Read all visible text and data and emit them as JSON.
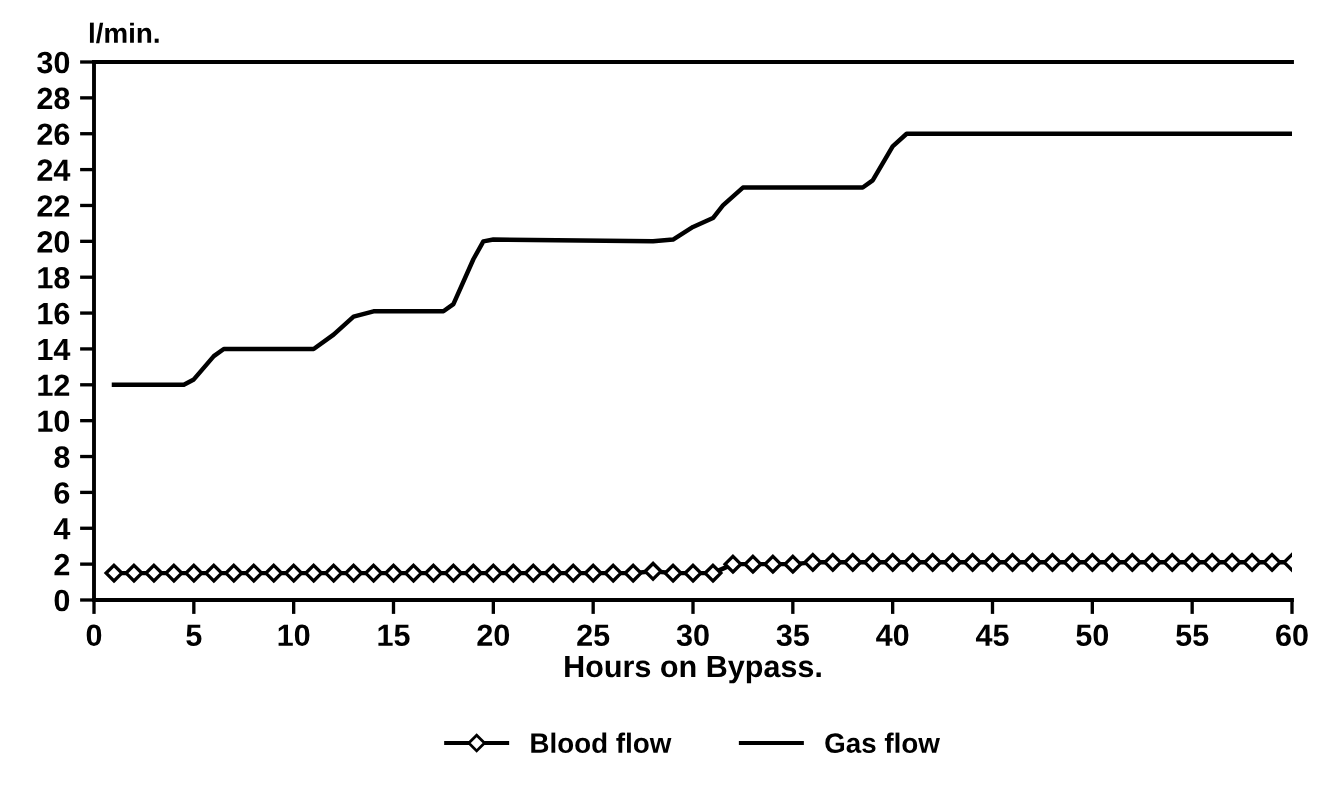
{
  "chart_data": {
    "type": "line",
    "ylabel": "l/min.",
    "xlabel": "Hours on Bypass.",
    "xlim": [
      0,
      60
    ],
    "xticks": [
      0,
      5,
      10,
      15,
      20,
      25,
      30,
      35,
      40,
      45,
      50,
      55,
      60
    ],
    "ylim": [
      0,
      30
    ],
    "yticks": [
      0,
      2,
      4,
      6,
      8,
      10,
      12,
      14,
      16,
      18,
      20,
      22,
      24,
      26,
      28,
      30
    ],
    "grid": false,
    "legend": "bottom",
    "series": [
      {
        "name": "Blood flow",
        "color": "#000000",
        "marker": "diamond",
        "x": [
          1,
          2,
          3,
          4,
          5,
          6,
          7,
          8,
          9,
          10,
          11,
          12,
          13,
          14,
          15,
          16,
          17,
          18,
          19,
          20,
          21,
          22,
          23,
          24,
          25,
          26,
          27,
          28,
          29,
          30,
          31,
          32,
          33,
          34,
          35,
          36,
          37,
          38,
          39,
          40,
          41,
          42,
          43,
          44,
          45,
          46,
          47,
          48,
          49,
          50,
          51,
          52,
          53,
          54,
          55,
          56,
          57,
          58,
          59,
          60
        ],
        "values": [
          1.5,
          1.5,
          1.5,
          1.5,
          1.5,
          1.5,
          1.5,
          1.5,
          1.5,
          1.5,
          1.5,
          1.5,
          1.5,
          1.5,
          1.5,
          1.5,
          1.5,
          1.5,
          1.5,
          1.5,
          1.5,
          1.5,
          1.5,
          1.5,
          1.5,
          1.5,
          1.5,
          1.6,
          1.5,
          1.5,
          1.5,
          2.0,
          2.0,
          2.0,
          2.0,
          2.1,
          2.1,
          2.1,
          2.1,
          2.1,
          2.1,
          2.1,
          2.1,
          2.1,
          2.1,
          2.1,
          2.1,
          2.1,
          2.1,
          2.1,
          2.1,
          2.1,
          2.1,
          2.1,
          2.1,
          2.1,
          2.1,
          2.1,
          2.1,
          2.1
        ]
      },
      {
        "name": "Gas flow",
        "color": "#000000",
        "marker": "none",
        "x": [
          1,
          4.5,
          5,
          6,
          6.5,
          11,
          12,
          13,
          14,
          17.5,
          18,
          19,
          19.5,
          20,
          28,
          29,
          30,
          31,
          31.5,
          32.5,
          38.5,
          39,
          40,
          40.7,
          60
        ],
        "values": [
          12,
          12,
          12.3,
          13.6,
          14,
          14,
          14.8,
          15.8,
          16.1,
          16.1,
          16.5,
          19,
          20,
          20.1,
          20,
          20.1,
          20.8,
          21.3,
          22,
          23,
          23,
          23.4,
          25.3,
          26,
          26
        ]
      }
    ]
  }
}
